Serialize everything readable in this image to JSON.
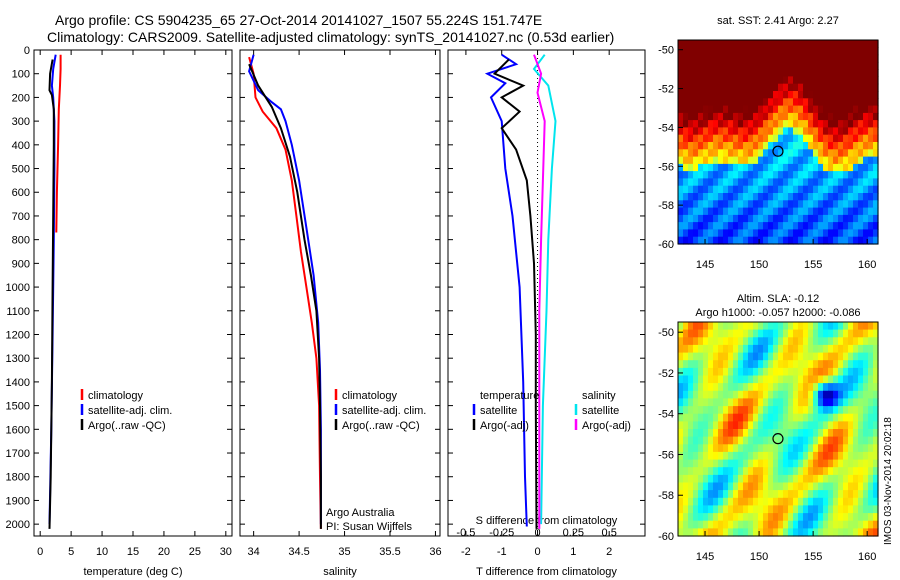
{
  "header": {
    "line1": "Argo profile: CS 5904235_65 27-Oct-2014 20141027_1507 55.224S 151.747E",
    "line2": "Climatology: CARS2009. Satellite-adjusted climatology: synTS_20141027.nc (0.53d earlier)"
  },
  "colors": {
    "climatology": "#ff0000",
    "satellite": "#0000ff",
    "argo": "#000000",
    "sal_satellite": "#00e5ee",
    "sal_argo": "#ff00ff"
  },
  "chart_data": [
    {
      "type": "line",
      "panel": "temperature",
      "xlabel": "temperature (deg C)",
      "ylabel": "",
      "xlim": [
        -1,
        31
      ],
      "ylim": [
        2050,
        0
      ],
      "xticks": [
        0,
        5,
        10,
        15,
        20,
        25,
        30
      ],
      "yticks": [
        0,
        100,
        200,
        300,
        400,
        500,
        600,
        700,
        800,
        900,
        1000,
        1100,
        1200,
        1300,
        1400,
        1500,
        1600,
        1700,
        1800,
        1900,
        2000
      ],
      "legend": [
        "climatology",
        "satellite-adj. clim.",
        "Argo(..raw -QC)"
      ],
      "series": [
        {
          "name": "climatology",
          "color_key": "climatology",
          "points": [
            [
              3.3,
              20
            ],
            [
              3.3,
              80
            ],
            [
              3.2,
              150
            ],
            [
              3.0,
              250
            ],
            [
              2.9,
              400
            ],
            [
              2.7,
              600
            ],
            [
              2.6,
              770
            ]
          ]
        },
        {
          "name": "satellite-adj. clim.",
          "color_key": "satellite",
          "points": [
            [
              2.5,
              20
            ],
            [
              2.1,
              80
            ],
            [
              1.9,
              150
            ],
            [
              2.1,
              200
            ],
            [
              2.3,
              300
            ],
            [
              2.3,
              500
            ],
            [
              2.2,
              800
            ],
            [
              2.0,
              1200
            ],
            [
              1.8,
              1600
            ],
            [
              1.5,
              2000
            ]
          ]
        },
        {
          "name": "Argo(..raw -QC)",
          "color_key": "argo",
          "points": [
            [
              2.0,
              40
            ],
            [
              1.6,
              100
            ],
            [
              1.5,
              170
            ],
            [
              1.9,
              190
            ],
            [
              2.2,
              250
            ],
            [
              2.2,
              400
            ],
            [
              2.1,
              700
            ],
            [
              2.0,
              1000
            ],
            [
              1.9,
              1400
            ],
            [
              1.7,
              1800
            ],
            [
              1.5,
              2020
            ]
          ]
        }
      ]
    },
    {
      "type": "line",
      "panel": "salinity",
      "xlabel": "salinity",
      "ylabel": "",
      "xlim": [
        33.85,
        36.05
      ],
      "ylim": [
        2050,
        0
      ],
      "xticks": [
        34,
        34.5,
        35,
        35.5,
        36
      ],
      "legend": [
        "climatology",
        "satellite-adj. clim.",
        "Argo(..raw -QC)"
      ],
      "annotation": [
        "Argo Australia",
        "PI: Susan Wijffels"
      ],
      "series": [
        {
          "name": "climatology",
          "color_key": "climatology",
          "points": [
            [
              33.95,
              30
            ],
            [
              34.0,
              100
            ],
            [
              34.02,
              200
            ],
            [
              34.1,
              260
            ],
            [
              34.25,
              330
            ],
            [
              34.35,
              420
            ],
            [
              34.42,
              550
            ],
            [
              34.47,
              700
            ],
            [
              34.52,
              850
            ],
            [
              34.58,
              1000
            ],
            [
              34.64,
              1150
            ],
            [
              34.69,
              1300
            ],
            [
              34.72,
              1500
            ],
            [
              34.73,
              1800
            ],
            [
              34.74,
              2020
            ]
          ]
        },
        {
          "name": "satellite-adj. clim.",
          "color_key": "satellite",
          "points": [
            [
              34.0,
              20
            ],
            [
              33.95,
              90
            ],
            [
              34.05,
              170
            ],
            [
              34.2,
              220
            ],
            [
              34.3,
              250
            ],
            [
              34.35,
              300
            ],
            [
              34.42,
              400
            ],
            [
              34.5,
              550
            ],
            [
              34.58,
              750
            ],
            [
              34.66,
              950
            ],
            [
              34.71,
              1150
            ],
            [
              34.73,
              1350
            ],
            [
              34.74,
              1600
            ],
            [
              34.74,
              1900
            ],
            [
              34.74,
              2000
            ]
          ]
        },
        {
          "name": "Argo(..raw -QC)",
          "color_key": "argo",
          "points": [
            [
              33.95,
              60
            ],
            [
              34.05,
              150
            ],
            [
              34.2,
              240
            ],
            [
              34.3,
              330
            ],
            [
              34.4,
              450
            ],
            [
              34.48,
              600
            ],
            [
              34.56,
              800
            ],
            [
              34.63,
              950
            ],
            [
              34.69,
              1100
            ],
            [
              34.72,
              1300
            ],
            [
              34.73,
              1500
            ],
            [
              34.74,
              1800
            ],
            [
              34.74,
              2020
            ]
          ]
        }
      ]
    },
    {
      "type": "line",
      "panel": "differences",
      "xlabel": "T difference from climatology",
      "xlabel_top": "S difference from climatology",
      "xlim": [
        -2.5,
        3.0
      ],
      "xticks": [
        -2,
        -1,
        0,
        1,
        2
      ],
      "xticks_s": [
        -0.5,
        -0.25,
        0,
        0.25,
        0.5
      ],
      "ylim": [
        2050,
        0
      ],
      "legend_titles": [
        "temperature",
        "salinity"
      ],
      "legend": [
        "satellite",
        "Argo(-adj)",
        "satellite",
        "Argo(-adj)"
      ],
      "series": [
        {
          "name": "satellite",
          "color_key": "satellite",
          "points": [
            [
              -1.0,
              20
            ],
            [
              -0.6,
              60
            ],
            [
              -1.4,
              100
            ],
            [
              -0.9,
              140
            ],
            [
              -1.3,
              200
            ],
            [
              -1.0,
              300
            ],
            [
              -0.9,
              500
            ],
            [
              -0.7,
              700
            ],
            [
              -0.5,
              1000
            ],
            [
              -0.4,
              1400
            ],
            [
              -0.35,
              1800
            ],
            [
              -0.3,
              2010
            ]
          ]
        },
        {
          "name": "Argo(-adj)",
          "color_key": "argo",
          "points": [
            [
              -0.8,
              40
            ],
            [
              -1.2,
              100
            ],
            [
              -0.4,
              150
            ],
            [
              -1.0,
              200
            ],
            [
              -0.5,
              260
            ],
            [
              -1.0,
              330
            ],
            [
              -0.6,
              420
            ],
            [
              -0.3,
              550
            ],
            [
              -0.2,
              700
            ],
            [
              -0.1,
              900
            ],
            [
              -0.05,
              1200
            ],
            [
              -0.05,
              1500
            ],
            [
              -0.03,
              2020
            ]
          ]
        },
        {
          "name": "salinity satellite",
          "color_key": "sal_satellite",
          "points": [
            [
              0.2,
              20
            ],
            [
              -0.1,
              80
            ],
            [
              0.3,
              150
            ],
            [
              0.5,
              300
            ],
            [
              0.4,
              500
            ],
            [
              0.3,
              800
            ],
            [
              0.25,
              1100
            ],
            [
              0.15,
              1500
            ],
            [
              0.1,
              2000
            ]
          ]
        },
        {
          "name": "salinity Argo(-adj)",
          "color_key": "sal_argo",
          "points": [
            [
              -0.1,
              20
            ],
            [
              0.1,
              100
            ],
            [
              0.0,
              180
            ],
            [
              0.2,
              300
            ],
            [
              0.15,
              550
            ],
            [
              0.1,
              800
            ],
            [
              0.05,
              1100
            ],
            [
              0.05,
              1500
            ],
            [
              0.05,
              2020
            ]
          ]
        }
      ]
    },
    {
      "type": "heatmap",
      "panel": "sst_map",
      "title": "sat. SST: 2.41 Argo: 2.27",
      "xticks": [
        145,
        150,
        155,
        160
      ],
      "yticks": [
        -50,
        -52,
        -54,
        -56,
        -58,
        -60
      ],
      "xlim": [
        142.5,
        161
      ],
      "ylim": [
        -60,
        -49.5
      ],
      "marker": {
        "lon": 151.747,
        "lat": -55.224
      }
    },
    {
      "type": "heatmap",
      "panel": "sla_map",
      "title": "Altim. SLA: -0.12",
      "subtitle": "Argo h1000: -0.057 h2000: -0.086",
      "xticks": [
        145,
        150,
        155,
        160
      ],
      "yticks": [
        -50,
        -52,
        -54,
        -56,
        -58,
        -60
      ],
      "xlim": [
        142.5,
        161
      ],
      "ylim": [
        -60,
        -49.5
      ],
      "marker": {
        "lon": 151.747,
        "lat": -55.224
      }
    }
  ],
  "footer": {
    "stamp": "IMOS 03-Nov-2014 20:02:18"
  }
}
